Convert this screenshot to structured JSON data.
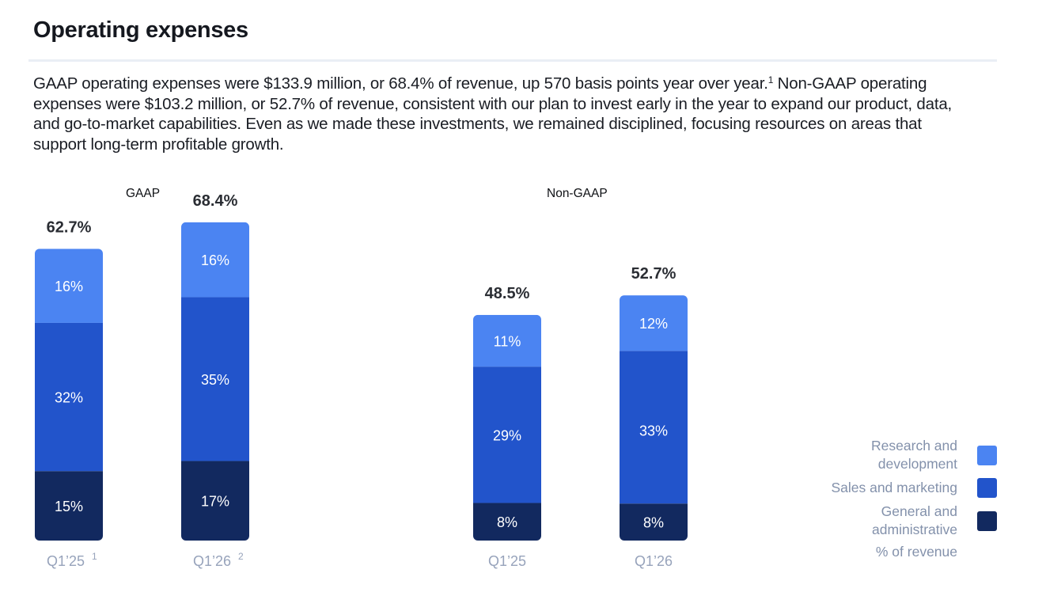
{
  "header": {
    "title": "Operating expenses"
  },
  "body": {
    "paragraph_part1": "GAAP operating expenses were $133.9 million, or 68.4% of revenue, up 570 basis points year over year.",
    "footnote_marker": "1",
    "paragraph_part2": " Non-GAAP operating expenses were $103.2 million, or 52.7% of revenue, consistent with our plan to invest early in the year to expand our product, data, and go-to-market capabilities. Even as we made these investments, we remained disciplined, focusing resources on areas that support long-term profitable growth."
  },
  "colors": {
    "research_and_development": "#4b84f2",
    "sales_and_marketing": "#2254cb",
    "general_and_administrative": "#12295f"
  },
  "chart_data": {
    "type": "bar",
    "stacked": true,
    "unit": "% of revenue",
    "legend_position": "bottom-right",
    "segment_order": [
      "General and administrative",
      "Sales and marketing",
      "Research and development"
    ],
    "panels": [
      {
        "title": "GAAP",
        "categories": [
          "Q1’25",
          "Q1’26"
        ],
        "category_footnotes": [
          "1",
          "2"
        ],
        "totals": [
          "62.7%",
          "68.4%"
        ],
        "total_values": [
          62.7,
          68.4
        ],
        "series": [
          {
            "name": "Research and development",
            "values": [
              16,
              16
            ],
            "labels": [
              "16%",
              "16%"
            ]
          },
          {
            "name": "Sales and marketing",
            "values": [
              32,
              35
            ],
            "labels": [
              "32%",
              "35%"
            ]
          },
          {
            "name": "General and administrative",
            "values": [
              15,
              17
            ],
            "labels": [
              "15%",
              "17%"
            ]
          }
        ]
      },
      {
        "title": "Non-GAAP",
        "categories": [
          "Q1’25",
          "Q1’26"
        ],
        "category_footnotes": [
          "",
          ""
        ],
        "totals": [
          "48.5%",
          "52.7%"
        ],
        "total_values": [
          48.5,
          52.7
        ],
        "series": [
          {
            "name": "Research and development",
            "values": [
              11,
              12
            ],
            "labels": [
              "11%",
              "12%"
            ]
          },
          {
            "name": "Sales and marketing",
            "values": [
              29,
              33
            ],
            "labels": [
              "29%",
              "33%"
            ]
          },
          {
            "name": "General and administrative",
            "values": [
              8,
              8
            ],
            "labels": [
              "8%",
              "8%"
            ]
          }
        ]
      }
    ]
  },
  "legend": {
    "items": [
      {
        "label_line1": "Research and",
        "label_line2": "development",
        "key": "research_and_development"
      },
      {
        "label_line1": "Sales and marketing",
        "label_line2": "",
        "key": "sales_and_marketing"
      },
      {
        "label_line1": "General and",
        "label_line2": "administrative",
        "key": "general_and_administrative"
      }
    ],
    "note": "% of revenue"
  }
}
